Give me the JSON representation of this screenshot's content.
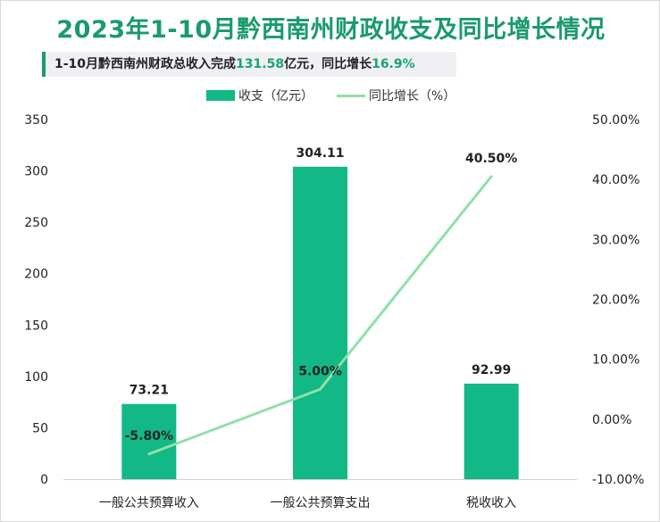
{
  "title": "2023年1-10月黔西南州财政收支及同比增长情况",
  "subtitle": {
    "prefix": "1-10月黔西南州财政总收入完成",
    "amount": "131.58",
    "middle": "亿元，同比增长",
    "growth": "16.9%"
  },
  "legend": {
    "bar_label": "收支（亿元）",
    "line_label": "同比增长（%）"
  },
  "colors": {
    "title": "#1a9a6c",
    "bar": "#12b886",
    "line": "#8fe0a8",
    "highlight": "#1aa36f"
  },
  "chart_data": {
    "type": "bar",
    "categories": [
      "一般公共预算收入",
      "一般公共预算支出",
      "税收收入"
    ],
    "series": [
      {
        "name": "收支（亿元）",
        "type": "bar",
        "axis": "left",
        "values": [
          73.21,
          304.11,
          92.99
        ],
        "labels": [
          "73.21",
          "304.11",
          "92.99"
        ]
      },
      {
        "name": "同比增长（%）",
        "type": "line",
        "axis": "right",
        "values": [
          -5.8,
          5.0,
          40.5
        ],
        "labels": [
          "-5.80%",
          "5.00%",
          "40.50%"
        ]
      }
    ],
    "y_left": {
      "range": [
        0,
        350
      ],
      "ticks": [
        0,
        50,
        100,
        150,
        200,
        250,
        300,
        350
      ],
      "tick_labels": [
        "0",
        "50",
        "100",
        "150",
        "200",
        "250",
        "300",
        "350"
      ]
    },
    "y_right": {
      "range": [
        -10,
        50
      ],
      "ticks": [
        -10,
        0,
        10,
        20,
        30,
        40,
        50
      ],
      "tick_labels": [
        "-10.00%",
        "0.00%",
        "10.00%",
        "20.00%",
        "30.00%",
        "40.00%",
        "50.00%"
      ]
    },
    "grid": false,
    "legend_position": "top-center"
  }
}
